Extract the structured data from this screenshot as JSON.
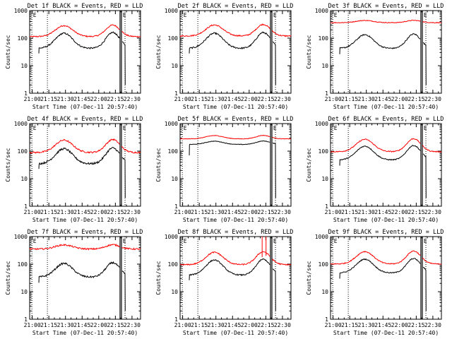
{
  "panels": [
    {
      "title": "Det 1f BLACK = Events, RED = LLD",
      "xlabel": "Start Time (07-Dec-11 20:57:40)",
      "ylabel": "Counts/sec",
      "events": {
        "base": 80,
        "amp": 0.55,
        "noise": 0.06
      },
      "lld": {
        "base": 180,
        "amp": 0.4,
        "noise": 0.05
      },
      "variant": "normal"
    },
    {
      "title": "Det 2f BLACK = Events, RED = LLD",
      "xlabel": "Start Time (07-Dec-11 20:57:40)",
      "ylabel": "Counts/sec",
      "events": {
        "base": 80,
        "amp": 0.55,
        "noise": 0.06
      },
      "lld": {
        "base": 190,
        "amp": 0.4,
        "noise": 0.05
      },
      "variant": "normal"
    },
    {
      "title": "Det 3f BLACK = Events, RED = LLD",
      "xlabel": "Start Time (07-Dec-11 20:57:40)",
      "ylabel": "Counts/sec",
      "events": {
        "base": 75,
        "amp": 0.5,
        "noise": 0.05
      },
      "lld": {
        "base": 400,
        "amp": 0.08,
        "noise": 0.03
      },
      "variant": "flatred"
    },
    {
      "title": "Det 4f BLACK = Events, RED = LLD",
      "xlabel": "Start Time (07-Dec-11 20:57:40)",
      "ylabel": "Counts/sec",
      "events": {
        "base": 65,
        "amp": 0.55,
        "noise": 0.08
      },
      "lld": {
        "base": 150,
        "amp": 0.45,
        "noise": 0.06
      },
      "variant": "normal"
    },
    {
      "title": "Det 5f BLACK = Events, RED = LLD",
      "xlabel": "Start Time (07-Dec-11 20:57:40)",
      "ylabel": "Counts/sec",
      "events": {
        "base": 200,
        "amp": 0.12,
        "noise": 0.02
      },
      "lld": {
        "base": 320,
        "amp": 0.12,
        "noise": 0.02
      },
      "variant": "smooth"
    },
    {
      "title": "Det 6f BLACK = Events, RED = LLD",
      "xlabel": "Start Time (07-Dec-11 20:57:40)",
      "ylabel": "Counts/sec",
      "events": {
        "base": 85,
        "amp": 0.5,
        "noise": 0.04
      },
      "lld": {
        "base": 160,
        "amp": 0.45,
        "noise": 0.04
      },
      "variant": "normal"
    },
    {
      "title": "Det 7f BLACK = Events, RED = LLD",
      "xlabel": "Start Time (07-Dec-11 20:57:40)",
      "ylabel": "Counts/sec",
      "events": {
        "base": 60,
        "amp": 0.5,
        "noise": 0.07
      },
      "lld": {
        "base": 420,
        "amp": 0.15,
        "noise": 0.06
      },
      "variant": "flatred"
    },
    {
      "title": "Det 8f BLACK = Events, RED = LLD",
      "xlabel": "Start Time (07-Dec-11 20:57:40)",
      "ylabel": "Counts/sec",
      "events": {
        "base": 75,
        "amp": 0.55,
        "noise": 0.05
      },
      "lld": {
        "base": 160,
        "amp": 0.45,
        "noise": 0.05
      },
      "variant": "spike"
    },
    {
      "title": "Det 9f BLACK = Events, RED = LLD",
      "xlabel": "Start Time (07-Dec-11 20:57:40)",
      "ylabel": "Counts/sec",
      "events": {
        "base": 85,
        "amp": 0.5,
        "noise": 0.04
      },
      "lld": {
        "base": 170,
        "amp": 0.45,
        "noise": 0.04
      },
      "variant": "normal"
    }
  ],
  "chart_data": {
    "type": "line",
    "x_ticks": [
      "21:00",
      "21:15",
      "21:30",
      "21:45",
      "22:00",
      "22:15",
      "22:30"
    ],
    "y_ticks": [
      "1",
      "10",
      "100",
      "1000"
    ],
    "yscale": "log",
    "ylim": [
      1,
      1000
    ],
    "xlim_minutes": [
      0,
      100
    ],
    "series": [
      {
        "name": "Events",
        "color": "#000000"
      },
      {
        "name": "LLD",
        "color": "#ff0000"
      }
    ],
    "grid": false
  },
  "colors": {
    "events": "#000000",
    "lld": "#ff0000",
    "axis": "#000000",
    "background": "#ffffff"
  }
}
